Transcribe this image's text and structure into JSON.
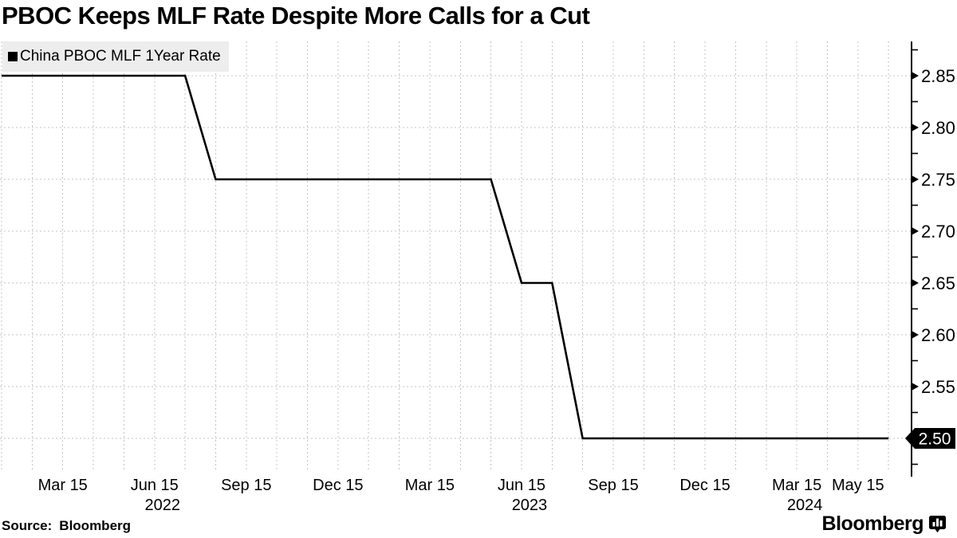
{
  "header": {
    "title": "PBOC Keeps MLF Rate Despite More Calls for a Cut"
  },
  "legend": {
    "label": "China PBOC MLF 1Year Rate",
    "swatch_color": "#000000",
    "background": "#ededed"
  },
  "footer": {
    "source_label": "Source:",
    "source_value": "Bloomberg",
    "brand": "Bloomberg"
  },
  "chart_data": {
    "type": "line",
    "style": "monthly-step",
    "title": "PBOC Keeps MLF Rate Despite More Calls for a Cut",
    "xlabel": "",
    "ylabel": "",
    "axis_side": "right",
    "grid": {
      "on": true,
      "dashed": true,
      "color": "#c3c3c3",
      "x_interval": "1 month"
    },
    "line_color": "#000000",
    "series": [
      {
        "name": "China PBOC MLF 1Year Rate",
        "color": "#000000",
        "points": [
          {
            "date": "2022-01-15",
            "value": 2.85
          },
          {
            "date": "2022-07-15",
            "value": 2.85
          },
          {
            "date": "2022-08-15",
            "value": 2.75
          },
          {
            "date": "2023-05-15",
            "value": 2.75
          },
          {
            "date": "2023-06-15",
            "value": 2.65
          },
          {
            "date": "2023-07-15",
            "value": 2.65
          },
          {
            "date": "2023-08-15",
            "value": 2.5
          },
          {
            "date": "2024-06-15",
            "value": 2.5
          }
        ]
      }
    ],
    "x_ticks": [
      {
        "label": "Mar 15",
        "date": "2022-03-15"
      },
      {
        "label": "Jun 15",
        "date": "2022-06-15",
        "year": "2022"
      },
      {
        "label": "Sep 15",
        "date": "2022-09-15"
      },
      {
        "label": "Dec 15",
        "date": "2022-12-15"
      },
      {
        "label": "Mar 15",
        "date": "2023-03-15"
      },
      {
        "label": "Jun 15",
        "date": "2023-06-15",
        "year": "2023"
      },
      {
        "label": "Sep 15",
        "date": "2023-09-15"
      },
      {
        "label": "Dec 15",
        "date": "2023-12-15"
      },
      {
        "label": "Mar 15",
        "date": "2024-03-15",
        "year": "2024"
      },
      {
        "label": "May 15",
        "date": "2024-05-15"
      }
    ],
    "y_ticks": {
      "major_values": [
        2.85,
        2.8,
        2.75,
        2.7,
        2.65,
        2.6,
        2.55,
        2.5
      ],
      "major_labels": [
        "2.85",
        "2.80",
        "2.75",
        "2.70",
        "2.65",
        "2.60",
        "2.55",
        "2.50"
      ],
      "minor_step": 0.025
    },
    "ylim": [
      2.475,
      2.875
    ],
    "last_value_badge": {
      "text": "2.50",
      "value": 2.5,
      "bg": "#000000",
      "fg": "#ffffff"
    },
    "legend_position": "top-left"
  }
}
